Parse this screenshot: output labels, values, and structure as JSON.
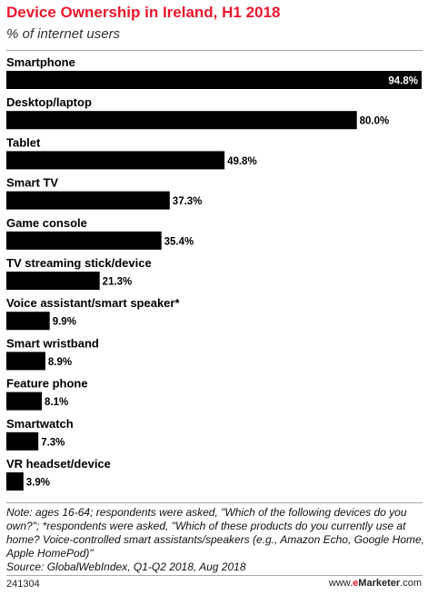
{
  "header": {
    "title": "Device Ownership in Ireland, H1 2018",
    "subtitle": "% of internet users"
  },
  "chart_data": {
    "type": "bar",
    "orientation": "horizontal",
    "title": "Device Ownership in Ireland, H1 2018",
    "subtitle": "% of internet users",
    "categories": [
      "Smartphone",
      "Desktop/laptop",
      "Tablet",
      "Smart TV",
      "Game console",
      "TV streaming stick/device",
      "Voice assistant/smart speaker*",
      "Smart wristband",
      "Feature phone",
      "Smartwatch",
      "VR headset/device"
    ],
    "values": [
      94.8,
      80.0,
      49.8,
      37.3,
      35.4,
      21.3,
      9.9,
      8.9,
      8.1,
      7.3,
      3.9
    ],
    "value_labels": [
      "94.8%",
      "80.0%",
      "49.8%",
      "37.3%",
      "35.4%",
      "21.3%",
      "9.9%",
      "8.9%",
      "8.1%",
      "7.3%",
      "3.9%"
    ],
    "xlim": [
      0,
      94.8
    ],
    "bar_color": "#000000",
    "grid": false
  },
  "notes": {
    "note": "Note: ages 16-64; respondents were asked, \"Which of the following devices do you own?\"; *respondents were asked, \"Which of these products do you currently use at home? Voice-controlled smart assistants/speakers (e.g., Amazon Echo, Google Home, Apple HomePod)\"",
    "source": "Source: GlobalWebIndex, Q1-Q2 2018, Aug 2018"
  },
  "footer": {
    "chart_id": "241304",
    "brand_prefix": "www.",
    "brand_mark": "e",
    "brand_name": "Marketer",
    "brand_suffix": ".com"
  },
  "colors": {
    "title": "#e8192c",
    "bar": "#000000",
    "divider": "#a8a8a8"
  }
}
